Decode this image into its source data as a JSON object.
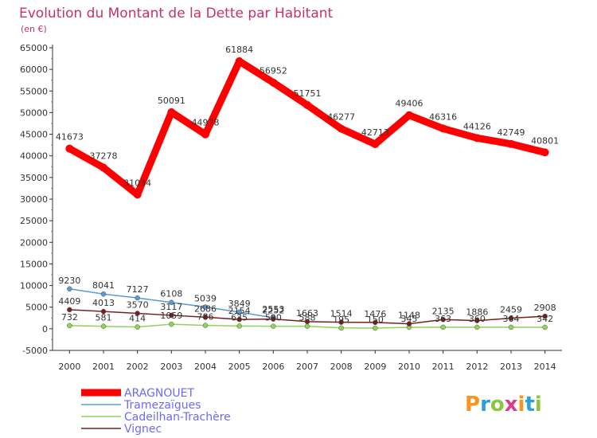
{
  "chart_data": {
    "type": "line",
    "title": "Evolution du Montant de la Dette par Habitant",
    "subtitle": "(en €)",
    "xlabel": "",
    "ylabel": "",
    "x": [
      "2000",
      "2001",
      "2002",
      "2003",
      "2004",
      "2005",
      "2006",
      "2007",
      "2008",
      "2009",
      "2010",
      "2011",
      "2012",
      "2013",
      "2014"
    ],
    "y_ticks": [
      "65000",
      "60000",
      "55000",
      "50000",
      "45000",
      "40000",
      "35000",
      "30000",
      "25000",
      "20000",
      "15000",
      "10000",
      "5000",
      "0",
      "-5000"
    ],
    "ylim": [
      -5000,
      65000
    ],
    "grid": false,
    "legend_position": "bottom-left",
    "series": [
      {
        "name": "ARAGNOUET",
        "color": "#ff0000",
        "values": [
          41673,
          37278,
          31034,
          50091,
          44978,
          61884,
          56952,
          51751,
          46277,
          42713,
          49406,
          46316,
          44126,
          42749,
          40801
        ],
        "labels": [
          "41673",
          "37278",
          "31034",
          "50091",
          "44978",
          "61884",
          "56952",
          "51751",
          "46277",
          "42713",
          "49406",
          "46316",
          "44126",
          "42749",
          "40801"
        ]
      },
      {
        "name": "Tramezaïgues",
        "color": "#5b9bd5",
        "values": [
          9230,
          8041,
          7127,
          6108,
          5039,
          3849,
          2553,
          null,
          null,
          null,
          null,
          null,
          null,
          null,
          null
        ],
        "labels": [
          "9230",
          "8041",
          "7127",
          "6108",
          "5039",
          "3849",
          "2553",
          "",
          "",
          "",
          "",
          "",
          "",
          "",
          ""
        ]
      },
      {
        "name": "Cadeilhan-Trachère",
        "color": "#8fd35a",
        "values": [
          732,
          581,
          414,
          1059,
          786,
          635,
          590,
          588,
          195,
          150,
          345,
          363,
          360,
          364,
          342
        ],
        "labels": [
          "732",
          "581",
          "414",
          "1059",
          "786",
          "635",
          "590",
          "588",
          "195",
          "150",
          "345",
          "363",
          "360",
          "364",
          "342"
        ]
      },
      {
        "name": "Vignec",
        "color": "#7a1f1f",
        "values": [
          4409,
          4013,
          3570,
          3117,
          2686,
          2154,
          2252,
          1663,
          1514,
          1476,
          1148,
          2135,
          1886,
          2459,
          2908
        ],
        "labels": [
          "4409",
          "4013",
          "3570",
          "3117",
          "2686",
          "2154",
          "2252",
          "1663",
          "1514",
          "1476",
          "1148",
          "2135",
          "1886",
          "2459",
          "2908"
        ]
      }
    ]
  },
  "logo": {
    "text": "Proxiti",
    "colors": [
      "#f7941d",
      "#2e9fd6",
      "#8cc63f",
      "#e03b8b"
    ]
  }
}
